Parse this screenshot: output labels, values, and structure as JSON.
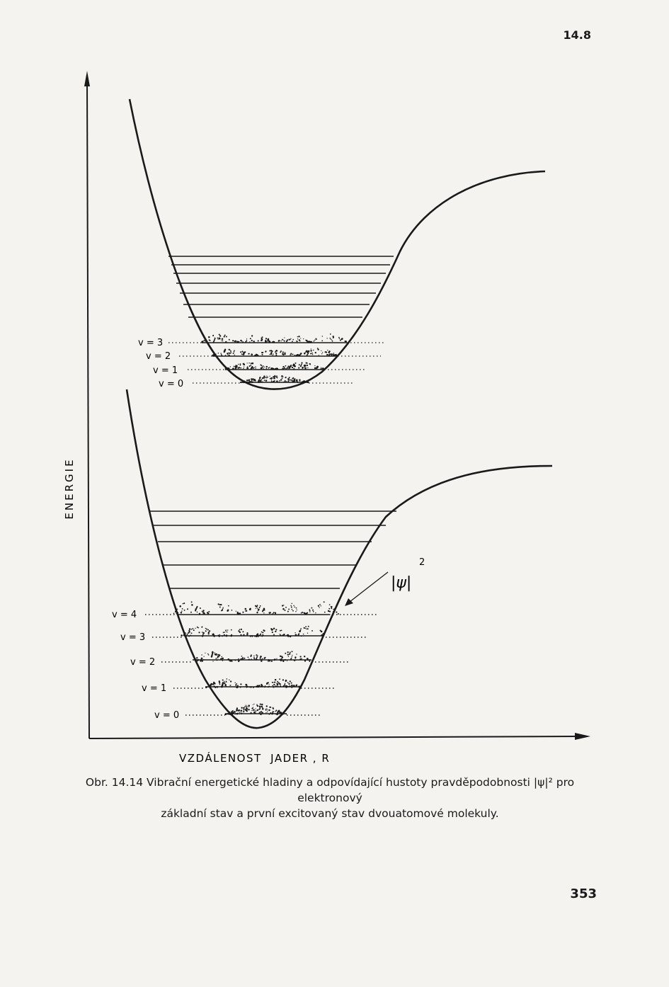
{
  "header": {
    "section": "14.8"
  },
  "footer": {
    "page_number": "353"
  },
  "figure": {
    "y_axis_label": "ENERGIE",
    "x_axis_label": "VZDÁLENOST  JADER , R",
    "psi_label": "|ψ|",
    "psi_exponent": "2",
    "upper_curve_levels": [
      "v = 3",
      "v = 2",
      "v = 1",
      "v = 0"
    ],
    "lower_curve_levels": [
      "v = 4",
      "v = 3",
      "v = 2",
      "v = 1",
      "v = 0"
    ]
  },
  "caption": {
    "line1": "Obr. 14.14 Vibrační energetické hladiny a odpovídající hustoty pravděpodobnosti |ψ|² pro elektronový",
    "line2": "základní stav a první excitovaný stav dvouatomové molekuly."
  }
}
